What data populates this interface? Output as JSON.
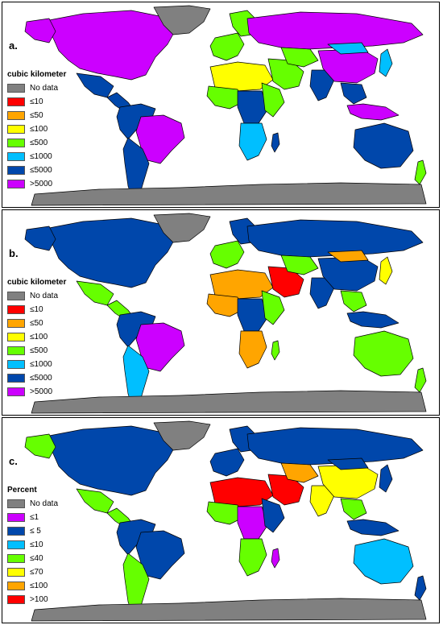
{
  "panels": [
    {
      "letter": "a.",
      "legend_title": "cubic kilometer",
      "legend": [
        {
          "label": "No data",
          "color": "#808080"
        },
        {
          "label": "≤10",
          "color": "#ff0000"
        },
        {
          "label": "≤50",
          "color": "#ffa500"
        },
        {
          "label": "≤100",
          "color": "#ffff00"
        },
        {
          "label": "≤500",
          "color": "#66ff00"
        },
        {
          "label": "≤1000",
          "color": "#00bfff"
        },
        {
          "label": "≤5000",
          "color": "#0047ab"
        },
        {
          "label": ">5000",
          "color": "#cc00ff"
        }
      ]
    },
    {
      "letter": "b.",
      "legend_title": "cubic kilometer",
      "legend": [
        {
          "label": "No data",
          "color": "#808080"
        },
        {
          "label": "≤10",
          "color": "#ff0000"
        },
        {
          "label": "≤50",
          "color": "#ffa500"
        },
        {
          "label": "≤100",
          "color": "#ffff00"
        },
        {
          "label": "≤500",
          "color": "#66ff00"
        },
        {
          "label": "≤1000",
          "color": "#00bfff"
        },
        {
          "label": "≤5000",
          "color": "#0047ab"
        },
        {
          "label": ">5000",
          "color": "#cc00ff"
        }
      ]
    },
    {
      "letter": "c.",
      "legend_title": "Percent",
      "legend": [
        {
          "label": "No data",
          "color": "#808080"
        },
        {
          "label": "≤1",
          "color": "#cc00ff"
        },
        {
          "label": "≤ 5",
          "color": "#0047ab"
        },
        {
          "label": "≤10",
          "color": "#00bfff"
        },
        {
          "label": "≤40",
          "color": "#66ff00"
        },
        {
          "label": "≤70",
          "color": "#ffff00"
        },
        {
          "label": "≤100",
          "color": "#ffa500"
        },
        {
          "label": ">100",
          "color": "#ff0000"
        }
      ]
    }
  ],
  "regions": [
    {
      "name": "north-america",
      "fills": [
        "#cc00ff",
        "#0047ab",
        "#0047ab"
      ]
    },
    {
      "name": "alaska",
      "fills": [
        "#cc00ff",
        "#0047ab",
        "#66ff00"
      ]
    },
    {
      "name": "greenland",
      "fills": [
        "#808080",
        "#808080",
        "#808080"
      ]
    },
    {
      "name": "mexico",
      "fills": [
        "#0047ab",
        "#66ff00",
        "#66ff00"
      ]
    },
    {
      "name": "central-america",
      "fills": [
        "#0047ab",
        "#66ff00",
        "#66ff00"
      ]
    },
    {
      "name": "northern-south-america",
      "fills": [
        "#0047ab",
        "#0047ab",
        "#0047ab"
      ]
    },
    {
      "name": "brazil",
      "fills": [
        "#cc00ff",
        "#cc00ff",
        "#0047ab"
      ]
    },
    {
      "name": "southern-south-america",
      "fills": [
        "#0047ab",
        "#00bfff",
        "#66ff00"
      ]
    },
    {
      "name": "western-europe",
      "fills": [
        "#66ff00",
        "#66ff00",
        "#0047ab"
      ]
    },
    {
      "name": "scandinavia",
      "fills": [
        "#66ff00",
        "#0047ab",
        "#0047ab"
      ]
    },
    {
      "name": "russia",
      "fills": [
        "#cc00ff",
        "#0047ab",
        "#0047ab"
      ]
    },
    {
      "name": "north-africa",
      "fills": [
        "#ffff00",
        "#ffa500",
        "#ff0000"
      ]
    },
    {
      "name": "west-africa",
      "fills": [
        "#66ff00",
        "#ffa500",
        "#66ff00"
      ]
    },
    {
      "name": "central-africa",
      "fills": [
        "#0047ab",
        "#0047ab",
        "#cc00ff"
      ]
    },
    {
      "name": "east-africa",
      "fills": [
        "#66ff00",
        "#66ff00",
        "#0047ab"
      ]
    },
    {
      "name": "southern-africa",
      "fills": [
        "#00bfff",
        "#ffa500",
        "#66ff00"
      ]
    },
    {
      "name": "middle-east",
      "fills": [
        "#66ff00",
        "#ff0000",
        "#ff0000"
      ]
    },
    {
      "name": "central-asia",
      "fills": [
        "#66ff00",
        "#66ff00",
        "#ffa500"
      ]
    },
    {
      "name": "india",
      "fills": [
        "#0047ab",
        "#0047ab",
        "#ffff00"
      ]
    },
    {
      "name": "china",
      "fills": [
        "#cc00ff",
        "#0047ab",
        "#ffff00"
      ]
    },
    {
      "name": "mongolia",
      "fills": [
        "#00bfff",
        "#ffa500",
        "#0047ab"
      ]
    },
    {
      "name": "southeast-asia",
      "fills": [
        "#0047ab",
        "#66ff00",
        "#66ff00"
      ]
    },
    {
      "name": "indonesia",
      "fills": [
        "#cc00ff",
        "#0047ab",
        "#0047ab"
      ]
    },
    {
      "name": "japan",
      "fills": [
        "#00bfff",
        "#ffff00",
        "#0047ab"
      ]
    },
    {
      "name": "australia",
      "fills": [
        "#0047ab",
        "#66ff00",
        "#00bfff"
      ]
    },
    {
      "name": "new-zealand",
      "fills": [
        "#66ff00",
        "#66ff00",
        "#0047ab"
      ]
    },
    {
      "name": "madagascar",
      "fills": [
        "#0047ab",
        "#66ff00",
        "#cc00ff"
      ]
    },
    {
      "name": "antarctica",
      "fills": [
        "#808080",
        "#808080",
        "#808080"
      ]
    }
  ]
}
